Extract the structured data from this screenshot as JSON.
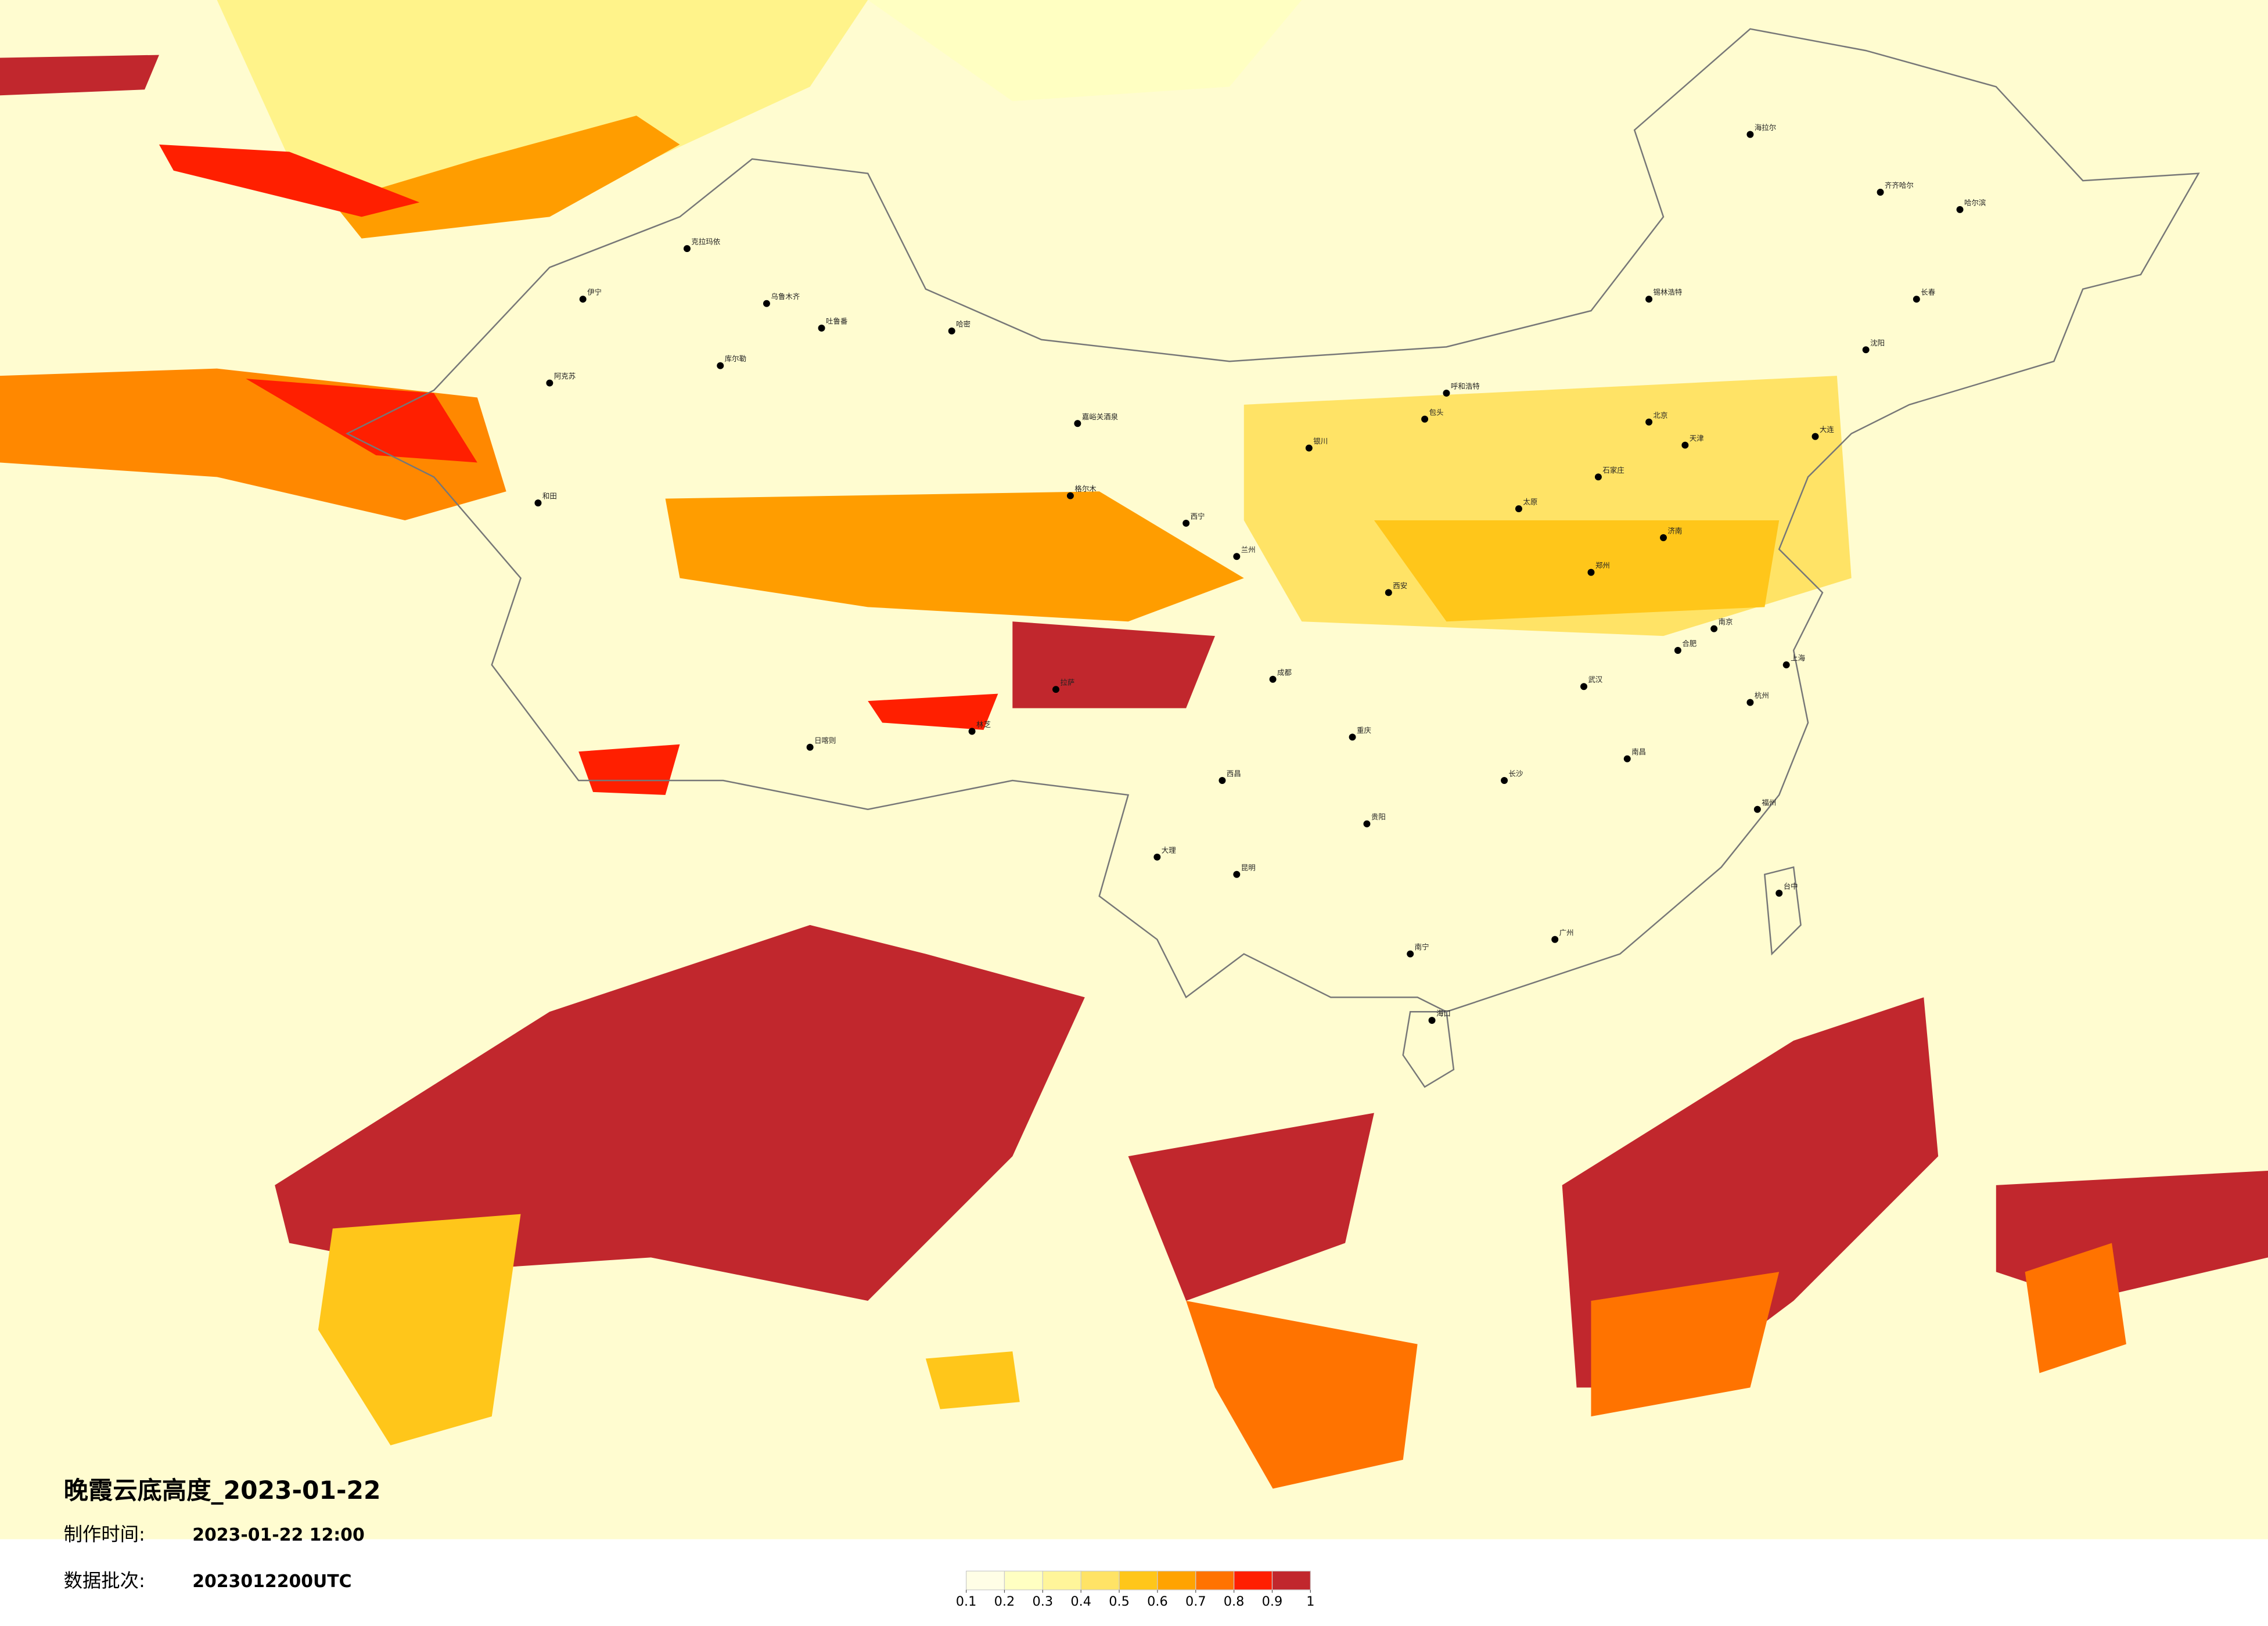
{
  "title": "晚霞云底高度_2023-01-22",
  "meta": [
    {
      "label": "制作时间:",
      "value": "2023-01-22 12:00"
    },
    {
      "label": "数据批次:",
      "value": "2023012200UTC"
    }
  ],
  "legend": {
    "ticks": [
      0.1,
      0.2,
      0.3,
      0.4,
      0.5,
      0.6,
      0.7,
      0.8,
      0.9,
      1
    ],
    "colors": [
      "#fffee6",
      "#ffffc2",
      "#fff59a",
      "#ffe366",
      "#ffc61a",
      "#ffa300",
      "#ff7300",
      "#ff1f00",
      "#c1272d"
    ]
  },
  "cities": [
    "克拉玛依",
    "伊宁",
    "阿克苏",
    "和田",
    "乌鲁木齐",
    "吐鲁番",
    "哈密",
    "库尔勒",
    "嘉峪关酒泉",
    "格尔木",
    "拉萨",
    "日喀则",
    "林芝",
    "西宁",
    "兰州",
    "银川",
    "呼和浩特",
    "包头",
    "北京",
    "天津",
    "石家庄",
    "太原",
    "济南",
    "郑州",
    "西安",
    "成都",
    "重庆",
    "昆明",
    "贵阳",
    "南宁",
    "广州",
    "长沙",
    "武汉",
    "南京",
    "上海",
    "杭州",
    "福州",
    "南昌",
    "合肥",
    "海口",
    "台中",
    "哈尔滨",
    "长春",
    "沈阳",
    "大连",
    "海拉尔",
    "齐齐哈尔",
    "锡林浩特",
    "大理",
    "西昌"
  ]
}
